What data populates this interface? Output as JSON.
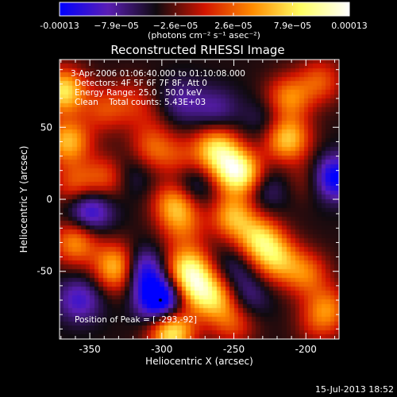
{
  "chart_data": {
    "type": "heatmap",
    "title": "Reconstructed RHESSI Image",
    "xlabel": "Heliocentric X (arcsec)",
    "ylabel": "Heliocentric Y (arcsec)",
    "xlim": [
      -371,
      -177
    ],
    "ylim": [
      -97,
      97
    ],
    "x_ticks": [
      "-350",
      "-300",
      "-250",
      "-200"
    ],
    "y_ticks": [
      "50",
      "0",
      "-50"
    ],
    "x_tick_values": [
      -350,
      -300,
      -250,
      -200
    ],
    "y_tick_values": [
      50,
      0,
      -50
    ],
    "colorbar": {
      "ticks": [
        "-0.00013",
        "−7.9e−05",
        "−2.6e−05",
        "2.6e−05",
        "7.9e−05",
        "0.00013"
      ],
      "tick_values": [
        -0.00013,
        -7.9e-05,
        -2.6e-05,
        2.6e-05,
        7.9e-05,
        0.00013
      ],
      "range": [
        -0.00013,
        0.00013
      ],
      "unit_label": "(photons cm⁻² s⁻¹ asec⁻²)"
    },
    "annotations": {
      "time_range": "3-Apr-2006 01:06:40.000 to 01:10:08.000",
      "detectors": "Detectors: 4F 5F 6F 7F 8F, Att 0",
      "energy": "Energy Range: 25.0 - 50.0 keV",
      "clean": "Clean    Total counts: 5.43E+03",
      "peak": "Position of Peak = [ -293,-92]"
    },
    "peak_position": [
      -293,
      -92
    ],
    "min_position": [
      -301,
      -70
    ],
    "colormap": [
      "#0000ff",
      "#5a1eb4",
      "#0f0a0f",
      "#d21400",
      "#ff8c00",
      "#ffff64",
      "#ffffff"
    ],
    "blobs": [
      {
        "x": -368,
        "y": 75,
        "value": 0.00012
      },
      {
        "x": -365,
        "y": 40,
        "value": 0.0001
      },
      {
        "x": -360,
        "y": 10,
        "value": 6e-05
      },
      {
        "x": -360,
        "y": -30,
        "value": 8.5e-05
      },
      {
        "x": -340,
        "y": 62,
        "value": 5e-05
      },
      {
        "x": -338,
        "y": 15,
        "value": 6e-05
      },
      {
        "x": -332,
        "y": -45,
        "value": 7.5e-05
      },
      {
        "x": -327,
        "y": -52,
        "value": 6e-05
      },
      {
        "x": -321,
        "y": 68,
        "value": 3.5e-05
      },
      {
        "x": -310,
        "y": 55,
        "value": 2e-05
      },
      {
        "x": -306,
        "y": 35,
        "value": 6e-05
      },
      {
        "x": -287,
        "y": 28,
        "value": 4e-05
      },
      {
        "x": -290,
        "y": -3,
        "value": 0.0001
      },
      {
        "x": -285,
        "y": -20,
        "value": 5e-05
      },
      {
        "x": -282,
        "y": -48,
        "value": 0.00011
      },
      {
        "x": -275,
        "y": -62,
        "value": 9.5e-05
      },
      {
        "x": -293,
        "y": -92,
        "value": 0.00013
      },
      {
        "x": -262,
        "y": 35,
        "value": 0.00011
      },
      {
        "x": -250,
        "y": 20,
        "value": 0.00011
      },
      {
        "x": -240,
        "y": 15,
        "value": 7e-05
      },
      {
        "x": -250,
        "y": -12,
        "value": 9.5e-05
      },
      {
        "x": -232,
        "y": -28,
        "value": 0.000105
      },
      {
        "x": -220,
        "y": -42,
        "value": 9e-05
      },
      {
        "x": -262,
        "y": -70,
        "value": 8e-05
      },
      {
        "x": -250,
        "y": -86,
        "value": 5.5e-05
      },
      {
        "x": -213,
        "y": 42,
        "value": 0.00011
      },
      {
        "x": -212,
        "y": 70,
        "value": 8e-05
      },
      {
        "x": -190,
        "y": 82,
        "value": 6e-05
      },
      {
        "x": -198,
        "y": 14,
        "value": 3e-05
      },
      {
        "x": -200,
        "y": -52,
        "value": 7e-05
      },
      {
        "x": -185,
        "y": -76,
        "value": 7e-05
      },
      {
        "x": -192,
        "y": -88,
        "value": 3e-05
      },
      {
        "x": -350,
        "y": -8,
        "value": -8e-05
      },
      {
        "x": -315,
        "y": -50,
        "value": -0.0001
      },
      {
        "x": -357,
        "y": -70,
        "value": -6e-05
      },
      {
        "x": -301,
        "y": -70,
        "value": -0.00013
      },
      {
        "x": -279,
        "y": 8,
        "value": -5e-05
      },
      {
        "x": -262,
        "y": 62,
        "value": -4e-05
      },
      {
        "x": -286,
        "y": 68,
        "value": -4e-05
      },
      {
        "x": -230,
        "y": 8,
        "value": -5e-05
      },
      {
        "x": -227,
        "y": 55,
        "value": -3e-05
      },
      {
        "x": -180,
        "y": 15,
        "value": -0.0001
      },
      {
        "x": -250,
        "y": -48,
        "value": -3e-05
      },
      {
        "x": -241,
        "y": -68,
        "value": -4e-05
      },
      {
        "x": -321,
        "y": 17,
        "value": -3e-05
      }
    ]
  },
  "footer": {
    "timestamp": "15-Jul-2013 18:52"
  }
}
